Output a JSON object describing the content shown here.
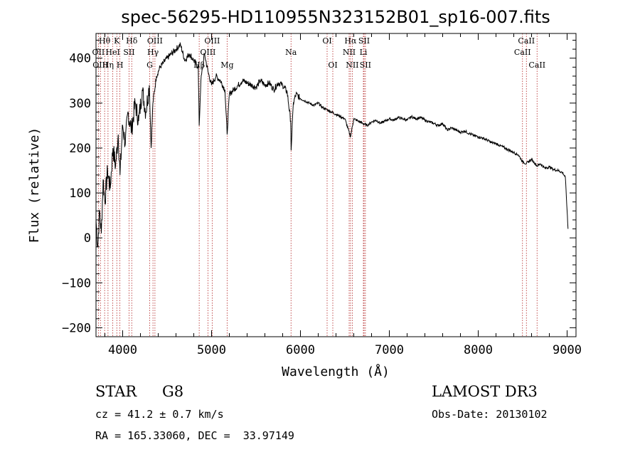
{
  "chart_data": {
    "type": "line",
    "title": "spec-56295-HD110955N323152B01_sp16-007.fits",
    "xlabel": "Wavelength (Å)",
    "ylabel": "Flux (relative)",
    "xlim": [
      3700,
      9100
    ],
    "ylim": [
      -220,
      455
    ],
    "xticks": [
      4000,
      5000,
      6000,
      7000,
      8000,
      9000
    ],
    "yticks": [
      -200,
      -100,
      0,
      100,
      200,
      300,
      400
    ],
    "series": [
      {
        "name": "spectrum",
        "x": [
          3700,
          3720,
          3740,
          3760,
          3780,
          3800,
          3830,
          3860,
          3890,
          3920,
          3950,
          3970,
          4000,
          4030,
          4060,
          4100,
          4140,
          4180,
          4220,
          4260,
          4300,
          4320,
          4340,
          4380,
          4420,
          4460,
          4500,
          4550,
          4600,
          4650,
          4700,
          4750,
          4800,
          4850,
          4861,
          4880,
          4920,
          4960,
          5000,
          5050,
          5100,
          5150,
          5175,
          5200,
          5250,
          5300,
          5350,
          5400,
          5450,
          5500,
          5550,
          5600,
          5650,
          5700,
          5750,
          5800,
          5850,
          5890,
          5895,
          5920,
          5950,
          6000,
          6050,
          6100,
          6150,
          6200,
          6250,
          6300,
          6350,
          6400,
          6450,
          6500,
          6563,
          6600,
          6650,
          6700,
          6750,
          6800,
          6850,
          6900,
          6950,
          7000,
          7050,
          7100,
          7150,
          7200,
          7250,
          7300,
          7350,
          7400,
          7450,
          7500,
          7550,
          7600,
          7650,
          7700,
          7750,
          7800,
          7850,
          7900,
          7950,
          8000,
          8050,
          8100,
          8150,
          8200,
          8250,
          8300,
          8350,
          8400,
          8450,
          8498,
          8542,
          8600,
          8662,
          8700,
          8750,
          8800,
          8850,
          8900,
          8950,
          8980,
          9000,
          9010
        ],
        "values": [
          40,
          -20,
          60,
          10,
          130,
          80,
          150,
          110,
          200,
          160,
          230,
          140,
          250,
          210,
          280,
          240,
          300,
          260,
          330,
          280,
          340,
          200,
          300,
          360,
          380,
          390,
          400,
          410,
          420,
          430,
          395,
          410,
          395,
          380,
          250,
          350,
          410,
          370,
          340,
          360,
          350,
          330,
          230,
          320,
          330,
          340,
          350,
          345,
          340,
          335,
          350,
          340,
          345,
          330,
          345,
          340,
          325,
          260,
          195,
          300,
          320,
          310,
          305,
          300,
          295,
          300,
          290,
          285,
          280,
          275,
          270,
          265,
          225,
          265,
          260,
          255,
          250,
          258,
          262,
          255,
          260,
          265,
          262,
          268,
          265,
          262,
          270,
          265,
          268,
          262,
          258,
          255,
          250,
          255,
          240,
          245,
          240,
          235,
          238,
          232,
          228,
          225,
          222,
          218,
          212,
          210,
          205,
          200,
          195,
          190,
          185,
          170,
          165,
          175,
          160,
          165,
          155,
          158,
          152,
          150,
          145,
          135,
          60,
          20
        ]
      }
    ],
    "lines": [
      {
        "wave": 3727,
        "label": "OII",
        "row": 2
      },
      {
        "wave": 3750,
        "label": "OIII",
        "row": 3
      },
      {
        "wave": 3797,
        "label": "Hθ",
        "row": 1
      },
      {
        "wave": 3835,
        "label": "Hη",
        "row": 3
      },
      {
        "wave": 3889,
        "label": "HeI",
        "row": 2
      },
      {
        "wave": 3934,
        "label": "K",
        "row": 1
      },
      {
        "wave": 3969,
        "label": "H",
        "row": 3
      },
      {
        "wave": 4072,
        "label": "SII",
        "row": 2
      },
      {
        "wave": 4102,
        "label": "Hδ",
        "row": 1
      },
      {
        "wave": 4304,
        "label": "G",
        "row": 3
      },
      {
        "wave": 4341,
        "label": "Hγ",
        "row": 2
      },
      {
        "wave": 4363,
        "label": "OIII",
        "row": 1
      },
      {
        "wave": 4861,
        "label": "Hβ",
        "row": 3
      },
      {
        "wave": 4959,
        "label": "OIII",
        "row": 2
      },
      {
        "wave": 5007,
        "label": "OIII",
        "row": 1
      },
      {
        "wave": 5175,
        "label": "Mg",
        "row": 3
      },
      {
        "wave": 5894,
        "label": "Na",
        "row": 2
      },
      {
        "wave": 6300,
        "label": "OI",
        "row": 1
      },
      {
        "wave": 6364,
        "label": "OI",
        "row": 3
      },
      {
        "wave": 6548,
        "label": "NII",
        "row": 2
      },
      {
        "wave": 6563,
        "label": "Hα",
        "row": 1
      },
      {
        "wave": 6583,
        "label": "NII",
        "row": 3
      },
      {
        "wave": 6708,
        "label": "Li",
        "row": 2
      },
      {
        "wave": 6716,
        "label": "SII",
        "row": 1
      },
      {
        "wave": 6731,
        "label": "SII",
        "row": 3
      },
      {
        "wave": 8498,
        "label": "CaII",
        "row": 2
      },
      {
        "wave": 8542,
        "label": "CaII",
        "row": 1
      },
      {
        "wave": 8662,
        "label": "CaII",
        "row": 3
      }
    ]
  },
  "info": {
    "class": "STAR",
    "subclass": "G8",
    "survey": "LAMOST DR3",
    "cz": "cz = 41.2 ± 0.7 km/s",
    "obs_date": "Obs-Date: 20130102",
    "coords": "RA = 165.33060, DEC =  33.97149"
  }
}
